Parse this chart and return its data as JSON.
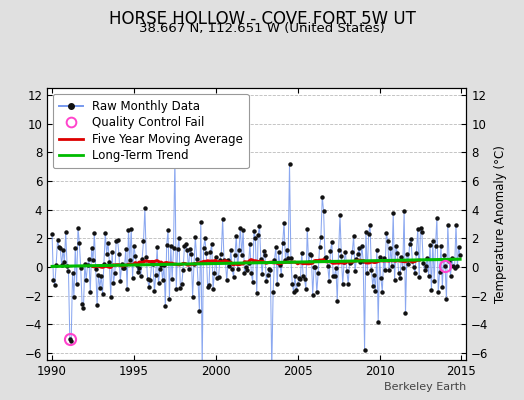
{
  "title": "HORSE HOLLOW - COVE FORT 5W UT",
  "subtitle": "38.667 N, 112.651 W (United States)",
  "ylabel": "Temperature Anomaly (°C)",
  "watermark": "Berkeley Earth",
  "background_color": "#e0e0e0",
  "plot_bg_color": "#ffffff",
  "xlim": [
    1989.7,
    2015.3
  ],
  "ylim": [
    -6.5,
    12.5
  ],
  "yticks": [
    -6,
    -4,
    -2,
    0,
    2,
    4,
    6,
    8,
    10,
    12
  ],
  "xticks": [
    1990,
    1995,
    2000,
    2005,
    2010,
    2015
  ],
  "raw_line_color": "#7799ee",
  "raw_dot_color": "#111111",
  "moving_avg_color": "#dd0000",
  "trend_color": "#00bb00",
  "qc_fail_color": "#ff44cc",
  "legend_fontsize": 8.5,
  "title_fontsize": 12,
  "subtitle_fontsize": 9.5
}
